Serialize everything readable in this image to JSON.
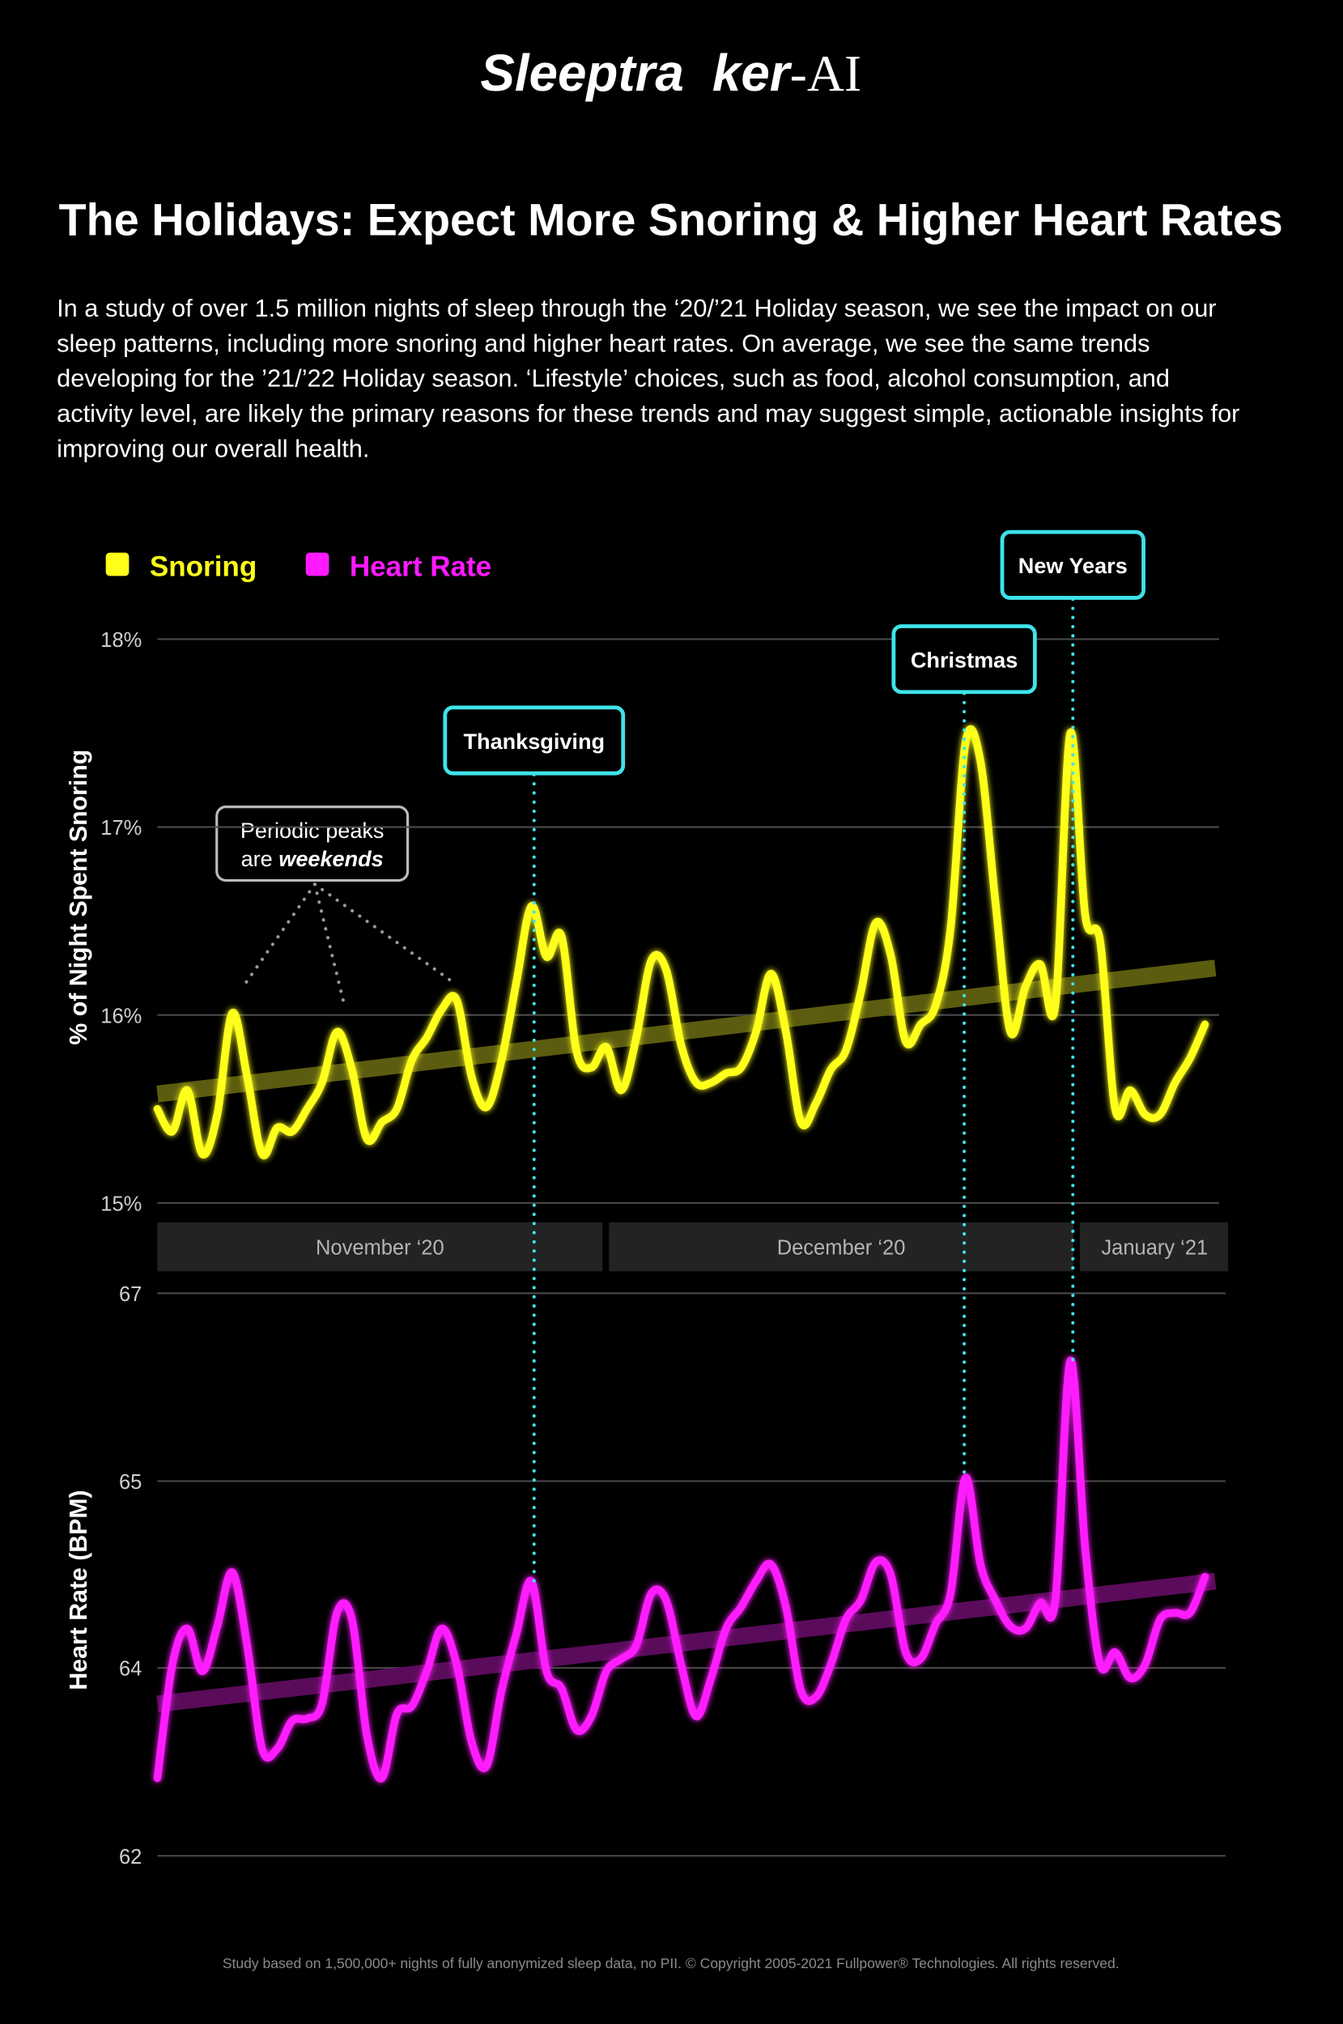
{
  "logo": [
    "Sleeptra",
    "ker",
    "-AI"
  ],
  "title": "The Holidays: Expect More Snoring & Higher Heart Rates",
  "description": [
    "In a study of over 1.5 million nights of sleep through the ‘20/’21 Holiday season, we see the impact on our",
    "sleep patterns, including more snoring and higher heart rates. On average, we see the same trends",
    "developing for the ’21/’22 Holiday season. ‘Lifestyle’ choices, such as food, alcohol consumption, and",
    "activity level, are likely the primary reasons for these trends and may suggest simple, actionable insights for",
    "improving our overall health."
  ],
  "footer": "Study based on 1,500,000+ nights of fully anonymized sleep data, no PII. © Copyright 2005-2021 Fullpower® Technologies. All rights reserved.",
  "chart_data": [
    {
      "type": "line",
      "ylabel": "% of Night Spent Snoring",
      "ylim": [
        15,
        18
      ],
      "yticks": [
        {
          "value": 15,
          "label": "15%"
        },
        {
          "value": 16,
          "label": "16%"
        },
        {
          "value": 17,
          "label": "17%"
        },
        {
          "value": 18,
          "label": "18%"
        }
      ],
      "grid": true,
      "months": [
        "November ‘20",
        "December ‘20",
        "January ‘21"
      ],
      "series": [
        {
          "name": "Snoring",
          "color": "#ffff1a",
          "values": [
            15.5,
            15.38,
            15.6,
            15.26,
            15.47,
            16.01,
            15.67,
            15.26,
            15.4,
            15.38,
            15.5,
            15.64,
            15.91,
            15.71,
            15.34,
            15.43,
            15.5,
            15.76,
            15.88,
            16.03,
            16.08,
            15.67,
            15.51,
            15.76,
            16.18,
            16.58,
            16.31,
            16.42,
            15.81,
            15.72,
            15.83,
            15.6,
            15.88,
            16.29,
            16.24,
            15.84,
            15.64,
            15.64,
            15.69,
            15.72,
            15.91,
            16.22,
            15.91,
            15.43,
            15.53,
            15.71,
            15.81,
            16.12,
            16.49,
            16.32,
            15.86,
            15.95,
            16.05,
            16.46,
            17.45,
            17.35,
            16.6,
            15.91,
            16.15,
            16.27,
            16.05,
            17.5,
            16.53,
            16.39,
            15.5,
            15.6,
            15.47,
            15.47,
            15.64,
            15.77,
            15.95
          ]
        }
      ],
      "trend": [
        15.58,
        16.25
      ],
      "trend_color": "#5c5c10",
      "annotations": [
        {
          "text": "Thanksgiving",
          "index": 25
        },
        {
          "text": "Christmas",
          "index": 54
        },
        {
          "text": "New Years",
          "index": 61
        }
      ],
      "note": {
        "lines": [
          "Periodic peaks",
          "are"
        ],
        "emphasis": "weekends"
      }
    },
    {
      "type": "line",
      "ylabel": "Heart Rate (BPM)",
      "ylim": [
        62,
        67
      ],
      "yticks": [
        62,
        {
          "value": 63.67,
          "label": "64"
        },
        {
          "value": 65.33,
          "label": "65"
        },
        67
      ],
      "grid": true,
      "series": [
        {
          "name": "Heart Rate",
          "color": "#ff1aff",
          "values": [
            62.69,
            63.7,
            64.02,
            63.64,
            64.04,
            64.52,
            63.87,
            62.95,
            62.95,
            63.2,
            63.22,
            63.35,
            64.16,
            64.1,
            63.07,
            62.69,
            63.26,
            63.33,
            63.64,
            64.02,
            63.7,
            63.01,
            62.8,
            63.47,
            63.98,
            64.44,
            63.64,
            63.49,
            63.12,
            63.24,
            63.64,
            63.75,
            63.87,
            64.33,
            64.27,
            63.7,
            63.24,
            63.58,
            64.02,
            64.21,
            64.44,
            64.59,
            64.21,
            63.47,
            63.41,
            63.7,
            64.1,
            64.27,
            64.61,
            64.5,
            63.81,
            63.75,
            64.06,
            64.33,
            65.36,
            64.59,
            64.27,
            64.04,
            64.02,
            64.25,
            64.27,
            66.4,
            64.73,
            63.7,
            63.81,
            63.58,
            63.7,
            64.1,
            64.16,
            64.16,
            64.48
          ]
        }
      ],
      "trend": [
        63.35,
        64.44
      ],
      "trend_color": "#5a0c5a"
    }
  ]
}
